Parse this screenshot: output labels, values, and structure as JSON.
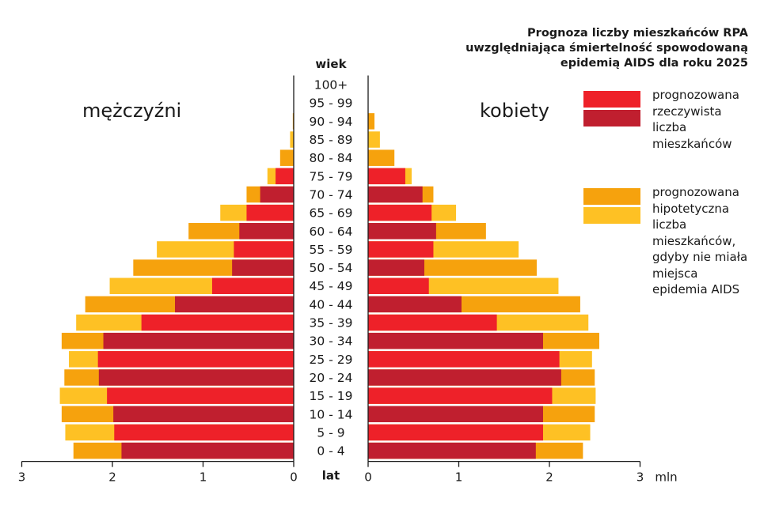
{
  "title_lines": [
    "Prognoza liczby mieszkańców RPA",
    "uwzględniająca śmiertelność spowodowaną",
    "epidemią AIDS dla roku 2025"
  ],
  "labels": {
    "men": "mężczyźni",
    "women": "kobiety",
    "age_top": "wiek",
    "age_bottom": "lat",
    "unit": "mln"
  },
  "legend": {
    "actual_lines": [
      "prognozowana",
      "rzeczywista",
      "liczba",
      "mieszkańców"
    ],
    "hypothetical_lines": [
      "prognozowana",
      "hipotetyczna",
      "liczba",
      "mieszkańców,",
      "gdyby nie miała",
      "miejsca",
      "epidemia AIDS"
    ]
  },
  "colors": {
    "actual_light": "#ee2129",
    "actual_dark": "#c01f2f",
    "hypothetical_dark": "#f6a20d",
    "hypothetical_light": "#fec124",
    "axis": "#1a1a1a"
  },
  "chart_data": {
    "type": "bar",
    "orientation": "horizontal-pyramid",
    "categories": [
      "100+",
      "95 - 99",
      "90 - 94",
      "85 - 89",
      "80 - 84",
      "75 - 79",
      "70 - 74",
      "65 - 69",
      "60 - 64",
      "55 - 59",
      "50 - 54",
      "45 - 49",
      "40 - 44",
      "35 - 39",
      "30 - 34",
      "25 - 29",
      "20 - 24",
      "15 - 19",
      "10 - 14",
      "5 - 9",
      "0 - 4"
    ],
    "series": [
      {
        "name": "mężczyźni – prognozowana rzeczywista liczba mieszkańców",
        "values": [
          0,
          0,
          0,
          0,
          0,
          0.2,
          0.37,
          0.52,
          0.6,
          0.66,
          0.68,
          0.9,
          1.31,
          1.68,
          2.1,
          2.16,
          2.15,
          2.06,
          1.99,
          1.98,
          1.9
        ]
      },
      {
        "name": "mężczyźni – prognozowana hipotetyczna liczba mieszkańców",
        "values": [
          0,
          0,
          0.01,
          0.04,
          0.15,
          0.29,
          0.52,
          0.81,
          1.16,
          1.51,
          1.77,
          2.03,
          2.3,
          2.4,
          2.56,
          2.48,
          2.53,
          2.58,
          2.56,
          2.52,
          2.43
        ]
      },
      {
        "name": "kobiety – prognozowana rzeczywista liczba mieszkańców",
        "values": [
          0,
          0,
          0,
          0,
          0,
          0.41,
          0.6,
          0.7,
          0.75,
          0.72,
          0.62,
          0.67,
          1.03,
          1.42,
          1.93,
          2.11,
          2.13,
          2.03,
          1.93,
          1.93,
          1.85
        ]
      },
      {
        "name": "kobiety – prognozowana hipotetyczna liczba mieszkańców",
        "values": [
          0,
          0,
          0.07,
          0.13,
          0.29,
          0.48,
          0.72,
          0.97,
          1.3,
          1.66,
          1.86,
          2.1,
          2.34,
          2.43,
          2.55,
          2.47,
          2.5,
          2.51,
          2.5,
          2.45,
          2.37
        ]
      }
    ],
    "xlim": [
      0,
      3
    ],
    "xticks": [
      "3",
      "2",
      "1",
      "0",
      "0",
      "1",
      "2",
      "3"
    ],
    "grid": false,
    "legend_position": "right"
  }
}
